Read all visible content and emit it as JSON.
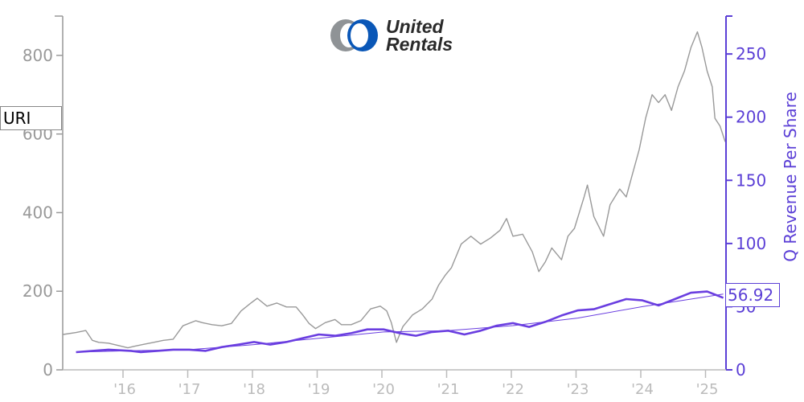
{
  "logo": {
    "line1": "United",
    "line2": "Rentals"
  },
  "ticker": "URI",
  "last_value_label": "56.92",
  "colors": {
    "price": "#999999",
    "revenue": "#6a3ee0",
    "right_axis": "#5b3fd6",
    "left_axis": "#999999",
    "bottom_axis": "#bbbbbb"
  },
  "chart_data": {
    "type": "line",
    "x_tick_labels": [
      "'16",
      "'17",
      "'18",
      "'19",
      "'20",
      "'21",
      "'22",
      "'23",
      "'24",
      "'25"
    ],
    "y_left": {
      "label": "",
      "lim": [
        0,
        900
      ],
      "ticks": [
        0,
        200,
        400,
        600,
        800
      ]
    },
    "y_right": {
      "label": "Q Revenue Per Share",
      "lim": [
        0,
        280
      ],
      "ticks": [
        0,
        50,
        100,
        150,
        200,
        250
      ]
    },
    "series": [
      {
        "axis": "left",
        "color": "#999999",
        "points": [
          [
            2015.05,
            90
          ],
          [
            2015.25,
            95
          ],
          [
            2015.4,
            100
          ],
          [
            2015.5,
            75
          ],
          [
            2015.6,
            70
          ],
          [
            2015.75,
            68
          ],
          [
            2015.9,
            62
          ],
          [
            2016.05,
            56
          ],
          [
            2016.15,
            60
          ],
          [
            2016.3,
            65
          ],
          [
            2016.45,
            70
          ],
          [
            2016.6,
            75
          ],
          [
            2016.75,
            78
          ],
          [
            2016.9,
            112
          ],
          [
            2017.1,
            125
          ],
          [
            2017.2,
            120
          ],
          [
            2017.35,
            115
          ],
          [
            2017.5,
            112
          ],
          [
            2017.65,
            118
          ],
          [
            2017.8,
            150
          ],
          [
            2017.95,
            170
          ],
          [
            2018.05,
            182
          ],
          [
            2018.2,
            162
          ],
          [
            2018.35,
            170
          ],
          [
            2018.5,
            160
          ],
          [
            2018.65,
            160
          ],
          [
            2018.75,
            140
          ],
          [
            2018.85,
            118
          ],
          [
            2018.95,
            105
          ],
          [
            2019.1,
            120
          ],
          [
            2019.25,
            128
          ],
          [
            2019.35,
            115
          ],
          [
            2019.5,
            115
          ],
          [
            2019.65,
            125
          ],
          [
            2019.8,
            155
          ],
          [
            2019.95,
            162
          ],
          [
            2020.05,
            150
          ],
          [
            2020.12,
            120
          ],
          [
            2020.2,
            70
          ],
          [
            2020.3,
            110
          ],
          [
            2020.45,
            140
          ],
          [
            2020.6,
            155
          ],
          [
            2020.75,
            180
          ],
          [
            2020.85,
            215
          ],
          [
            2020.95,
            240
          ],
          [
            2021.05,
            260
          ],
          [
            2021.2,
            320
          ],
          [
            2021.35,
            340
          ],
          [
            2021.5,
            320
          ],
          [
            2021.65,
            335
          ],
          [
            2021.8,
            355
          ],
          [
            2021.9,
            385
          ],
          [
            2022.0,
            340
          ],
          [
            2022.15,
            345
          ],
          [
            2022.3,
            300
          ],
          [
            2022.4,
            250
          ],
          [
            2022.5,
            275
          ],
          [
            2022.6,
            310
          ],
          [
            2022.75,
            280
          ],
          [
            2022.85,
            340
          ],
          [
            2022.95,
            360
          ],
          [
            2023.1,
            440
          ],
          [
            2023.15,
            470
          ],
          [
            2023.25,
            390
          ],
          [
            2023.4,
            340
          ],
          [
            2023.5,
            420
          ],
          [
            2023.65,
            460
          ],
          [
            2023.75,
            440
          ],
          [
            2023.85,
            500
          ],
          [
            2023.95,
            560
          ],
          [
            2024.05,
            640
          ],
          [
            2024.15,
            700
          ],
          [
            2024.25,
            680
          ],
          [
            2024.35,
            700
          ],
          [
            2024.45,
            660
          ],
          [
            2024.55,
            720
          ],
          [
            2024.65,
            760
          ],
          [
            2024.75,
            820
          ],
          [
            2024.85,
            860
          ],
          [
            2024.92,
            820
          ],
          [
            2025.0,
            760
          ],
          [
            2025.08,
            720
          ],
          [
            2025.12,
            640
          ],
          [
            2025.2,
            620
          ],
          [
            2025.28,
            580
          ]
        ]
      },
      {
        "axis": "right",
        "color": "#6a3ee0",
        "points": [
          [
            2015.25,
            14
          ],
          [
            2015.75,
            16
          ],
          [
            2016.1,
            15
          ],
          [
            2016.25,
            14
          ],
          [
            2016.5,
            15
          ],
          [
            2016.75,
            16
          ],
          [
            2017.0,
            16
          ],
          [
            2017.25,
            15
          ],
          [
            2017.5,
            18
          ],
          [
            2017.75,
            20
          ],
          [
            2018.0,
            22
          ],
          [
            2018.25,
            20
          ],
          [
            2018.5,
            22
          ],
          [
            2018.75,
            25
          ],
          [
            2019.0,
            28
          ],
          [
            2019.25,
            27
          ],
          [
            2019.5,
            29
          ],
          [
            2019.75,
            32
          ],
          [
            2020.0,
            32
          ],
          [
            2020.25,
            29
          ],
          [
            2020.5,
            27
          ],
          [
            2020.75,
            30
          ],
          [
            2021.0,
            31
          ],
          [
            2021.25,
            28
          ],
          [
            2021.5,
            31
          ],
          [
            2021.75,
            35
          ],
          [
            2022.0,
            37
          ],
          [
            2022.25,
            34
          ],
          [
            2022.5,
            38
          ],
          [
            2022.75,
            43
          ],
          [
            2023.0,
            47
          ],
          [
            2023.25,
            48
          ],
          [
            2023.5,
            52
          ],
          [
            2023.75,
            56
          ],
          [
            2024.0,
            55
          ],
          [
            2024.25,
            51
          ],
          [
            2024.5,
            56
          ],
          [
            2024.75,
            61
          ],
          [
            2025.0,
            62
          ],
          [
            2025.25,
            57
          ]
        ]
      },
      {
        "axis": "right",
        "color": "#6a3ee0",
        "points": [
          [
            2015.25,
            14
          ],
          [
            2016.0,
            15
          ],
          [
            2017.0,
            16
          ],
          [
            2018.0,
            20
          ],
          [
            2019.0,
            25
          ],
          [
            2020.0,
            30
          ],
          [
            2021.0,
            31
          ],
          [
            2022.0,
            35
          ],
          [
            2023.0,
            41
          ],
          [
            2024.0,
            50
          ],
          [
            2025.0,
            58
          ],
          [
            2025.25,
            60
          ]
        ]
      }
    ]
  }
}
